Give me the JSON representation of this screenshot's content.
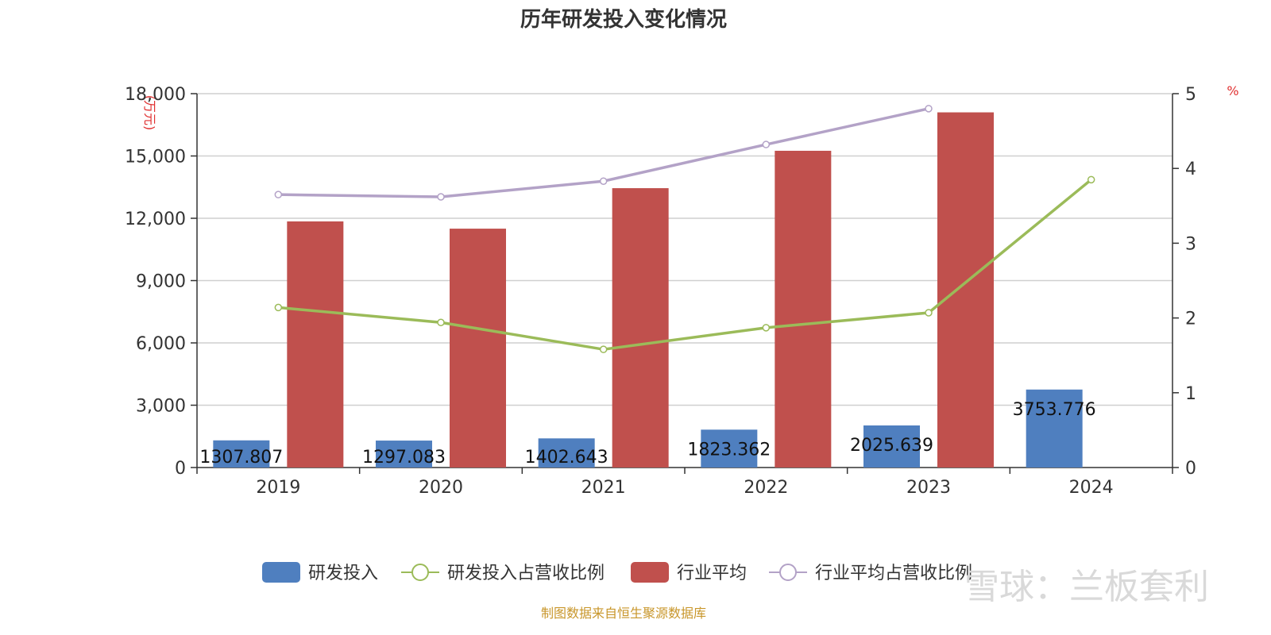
{
  "chart_data": {
    "type": "bar",
    "title": "历年研发投入变化情况",
    "categories": [
      "2019",
      "2020",
      "2021",
      "2022",
      "2023",
      "2024"
    ],
    "y_left": {
      "label": "(万元)",
      "ylim": [
        0,
        18000
      ],
      "ticks": [
        0,
        3000,
        6000,
        9000,
        12000,
        15000,
        18000
      ],
      "tick_labels": [
        "0",
        "3,000",
        "6,000",
        "9,000",
        "12,000",
        "15,000",
        "18,000"
      ]
    },
    "y_right": {
      "label": "%",
      "ylim": [
        0,
        5
      ],
      "ticks": [
        0,
        1,
        2,
        3,
        4,
        5
      ],
      "tick_labels": [
        "0",
        "1",
        "2",
        "3",
        "4",
        "5"
      ]
    },
    "series": [
      {
        "name": "研发投入",
        "type": "bar",
        "axis": "left",
        "color": "#4f7fbf",
        "values": [
          1307.807,
          1297.083,
          1402.643,
          1823.362,
          2025.639,
          3753.776
        ],
        "labels": [
          "1307.807",
          "1297.083",
          "1402.643",
          "1823.362",
          "2025.639",
          "3753.776"
        ]
      },
      {
        "name": "研发投入占营收比例",
        "type": "line",
        "axis": "right",
        "color": "#9bbb59",
        "values": [
          2.14,
          1.94,
          1.58,
          1.87,
          2.07,
          3.85
        ]
      },
      {
        "name": "行业平均",
        "type": "bar",
        "axis": "left",
        "color": "#c0504d",
        "values": [
          11850,
          11500,
          13450,
          15250,
          17100,
          null
        ]
      },
      {
        "name": "行业平均占营收比例",
        "type": "line",
        "axis": "right",
        "color": "#b3a2c7",
        "values": [
          3.65,
          3.62,
          3.83,
          4.32,
          4.8,
          null
        ]
      }
    ],
    "grid": true,
    "legend_position": "bottom"
  },
  "source": "制图数据来自恒生聚源数据库",
  "watermark": "雪球：兰板套利"
}
